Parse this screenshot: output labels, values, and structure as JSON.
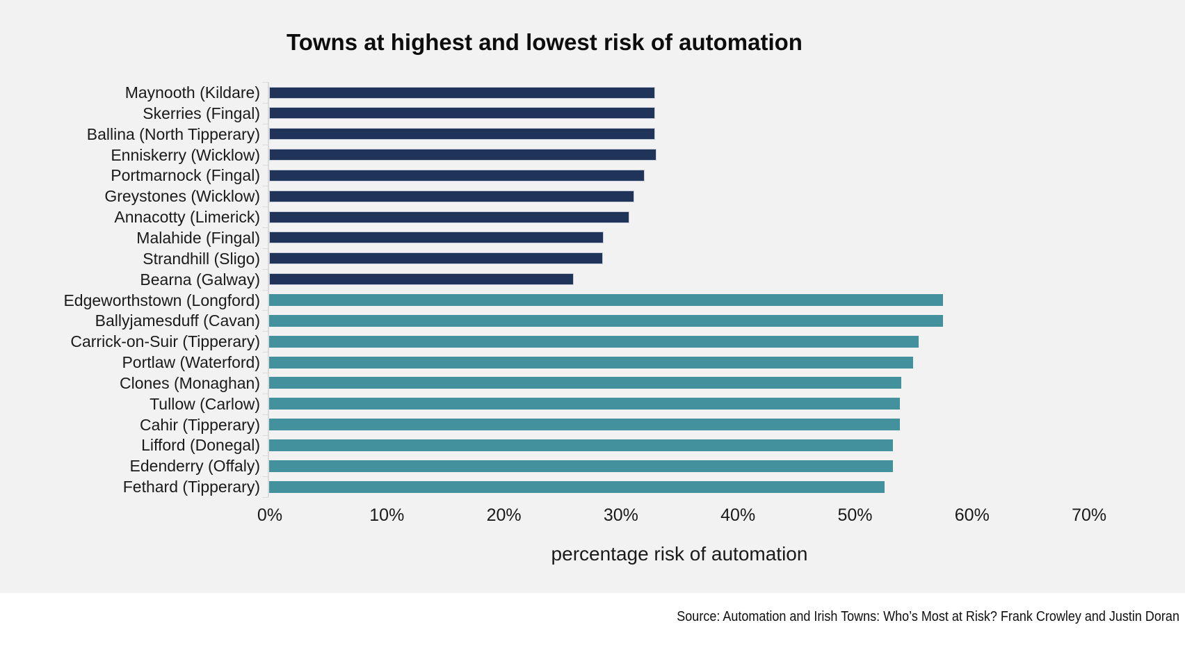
{
  "title": "Towns at highest and lowest risk of automation",
  "source": "Source: Automation and Irish Towns: Who’s Most at Risk? Frank Crowley and Justin Doran",
  "chart_data": {
    "type": "bar",
    "orientation": "horizontal",
    "title": "Towns at highest and lowest risk of automation",
    "xlabel": "percentage risk of automation",
    "ylabel": "",
    "xlim": [
      0,
      70
    ],
    "x_ticks": [
      "0%",
      "10%",
      "20%",
      "30%",
      "40%",
      "50%",
      "60%",
      "70%"
    ],
    "grid": false,
    "legend": null,
    "colors": {
      "low_risk": "#1f3458",
      "high_risk": "#44919e",
      "background": "#f2f2f2",
      "axis": "#dadada"
    },
    "rows": [
      {
        "label": "Maynooth (Kildare)",
        "value": 33.0,
        "group": "low_risk"
      },
      {
        "label": "Skerries (Fingal)",
        "value": 33.0,
        "group": "low_risk"
      },
      {
        "label": "Ballina (North Tipperary)",
        "value": 33.0,
        "group": "low_risk"
      },
      {
        "label": "Enniskerry (Wicklow)",
        "value": 33.1,
        "group": "low_risk"
      },
      {
        "label": "Portmarnock (Fingal)",
        "value": 32.1,
        "group": "low_risk"
      },
      {
        "label": "Greystones (Wicklow)",
        "value": 31.2,
        "group": "low_risk"
      },
      {
        "label": "Annacotty (Limerick)",
        "value": 30.8,
        "group": "low_risk"
      },
      {
        "label": "Malahide (Fingal)",
        "value": 28.6,
        "group": "low_risk"
      },
      {
        "label": "Strandhill (Sligo)",
        "value": 28.5,
        "group": "low_risk"
      },
      {
        "label": "Bearna (Galway)",
        "value": 26.0,
        "group": "low_risk"
      },
      {
        "label": "Edgeworthstown (Longford)",
        "value": 57.6,
        "group": "high_risk"
      },
      {
        "label": "Ballyjamesduff (Cavan)",
        "value": 57.6,
        "group": "high_risk"
      },
      {
        "label": "Carrick-on-Suir (Tipperary)",
        "value": 55.5,
        "group": "high_risk"
      },
      {
        "label": "Portlaw (Waterford)",
        "value": 55.0,
        "group": "high_risk"
      },
      {
        "label": "Clones (Monaghan)",
        "value": 54.0,
        "group": "high_risk"
      },
      {
        "label": "Tullow (Carlow)",
        "value": 53.9,
        "group": "high_risk"
      },
      {
        "label": "Cahir (Tipperary)",
        "value": 53.9,
        "group": "high_risk"
      },
      {
        "label": "Lifford (Donegal)",
        "value": 53.3,
        "group": "high_risk"
      },
      {
        "label": "Edenderry (Offaly)",
        "value": 53.3,
        "group": "high_risk"
      },
      {
        "label": "Fethard (Tipperary)",
        "value": 52.6,
        "group": "high_risk"
      }
    ]
  }
}
